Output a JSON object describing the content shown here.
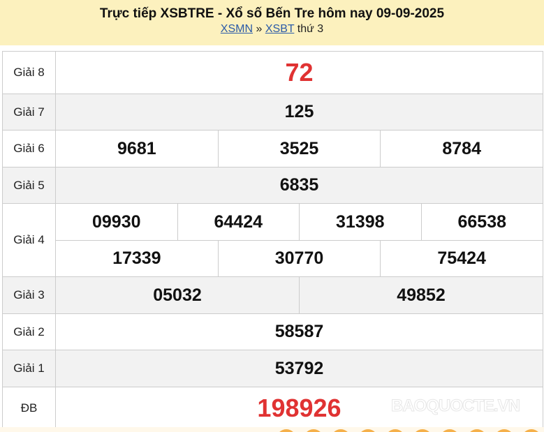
{
  "header": {
    "title": "Trực tiếp XSBTRE - Xổ số Bến Tre hôm nay 09-09-2025",
    "link1": "XSMN",
    "sep": "»",
    "link2": "XSBT",
    "day": "thứ 3"
  },
  "prizes": {
    "g8": {
      "label": "Giải 8",
      "nums": [
        "72"
      ]
    },
    "g7": {
      "label": "Giải 7",
      "nums": [
        "125"
      ]
    },
    "g6": {
      "label": "Giải 6",
      "nums": [
        "9681",
        "3525",
        "8784"
      ]
    },
    "g5": {
      "label": "Giải 5",
      "nums": [
        "6835"
      ]
    },
    "g4": {
      "label": "Giải 4",
      "nums": [
        "09930",
        "64424",
        "31398",
        "66538",
        "17339",
        "30770",
        "75424"
      ]
    },
    "g3": {
      "label": "Giải 3",
      "nums": [
        "05032",
        "49852"
      ]
    },
    "g2": {
      "label": "Giải 2",
      "nums": [
        "58587"
      ]
    },
    "g1": {
      "label": "Giải 1",
      "nums": [
        "53792"
      ]
    },
    "db": {
      "label": "ĐB",
      "nums": [
        "198926"
      ]
    }
  },
  "watermark": "BAOQUOCTE.VN",
  "colors": {
    "accent_red": "#e03232",
    "header_bg": "#fcf1be",
    "link": "#2b5ba8"
  }
}
